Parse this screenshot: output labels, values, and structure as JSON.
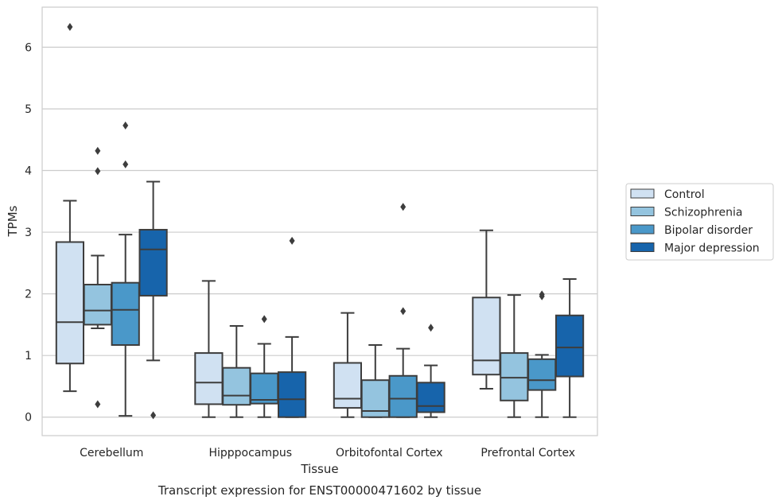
{
  "chart_data": {
    "type": "boxplot",
    "title": "Transcript expression for ENST00000471602 by tissue",
    "xlabel": "Tissue",
    "ylabel": "TPMs",
    "ylim": [
      -0.3,
      6.65
    ],
    "yticks": [
      0,
      1,
      2,
      3,
      4,
      5,
      6
    ],
    "grid": "horizontal",
    "legend_position": "right",
    "categories": [
      "Cerebellum",
      "Hipppocampus",
      "Orbitofontal Cortex",
      "Prefrontal Cortex"
    ],
    "series": [
      {
        "name": "Control",
        "color": "#d0e1f2",
        "boxes": [
          {
            "whislo": 0.42,
            "q1": 0.87,
            "med": 1.54,
            "q3": 2.84,
            "whishi": 3.51,
            "fliers": [
              6.33
            ]
          },
          {
            "whislo": 0.0,
            "q1": 0.21,
            "med": 0.56,
            "q3": 1.04,
            "whishi": 2.21,
            "fliers": []
          },
          {
            "whislo": 0.0,
            "q1": 0.15,
            "med": 0.3,
            "q3": 0.88,
            "whishi": 1.69,
            "fliers": []
          },
          {
            "whislo": 0.46,
            "q1": 0.69,
            "med": 0.92,
            "q3": 1.94,
            "whishi": 3.03,
            "fliers": []
          }
        ]
      },
      {
        "name": "Schizophrenia",
        "color": "#94c4df",
        "boxes": [
          {
            "whislo": 1.44,
            "q1": 1.5,
            "med": 1.73,
            "q3": 2.15,
            "whishi": 2.62,
            "fliers": [
              0.21,
              3.99,
              4.32
            ]
          },
          {
            "whislo": 0.0,
            "q1": 0.2,
            "med": 0.35,
            "q3": 0.8,
            "whishi": 1.48,
            "fliers": []
          },
          {
            "whislo": 0.0,
            "q1": 0.0,
            "med": 0.1,
            "q3": 0.6,
            "whishi": 1.17,
            "fliers": []
          },
          {
            "whislo": 0.0,
            "q1": 0.27,
            "med": 0.64,
            "q3": 1.04,
            "whishi": 1.98,
            "fliers": []
          }
        ]
      },
      {
        "name": "Bipolar disorder",
        "color": "#4a98c9",
        "boxes": [
          {
            "whislo": 0.02,
            "q1": 1.17,
            "med": 1.74,
            "q3": 2.18,
            "whishi": 2.96,
            "fliers": [
              4.1,
              4.73
            ]
          },
          {
            "whislo": 0.0,
            "q1": 0.22,
            "med": 0.28,
            "q3": 0.71,
            "whishi": 1.19,
            "fliers": [
              1.59
            ]
          },
          {
            "whislo": 0.0,
            "q1": 0.0,
            "med": 0.3,
            "q3": 0.67,
            "whishi": 1.11,
            "fliers": [
              1.72,
              3.41
            ]
          },
          {
            "whislo": 0.0,
            "q1": 0.44,
            "med": 0.6,
            "q3": 0.94,
            "whishi": 1.01,
            "fliers": [
              1.96,
              1.99
            ]
          }
        ]
      },
      {
        "name": "Major depression",
        "color": "#1764ab",
        "boxes": [
          {
            "whislo": 0.92,
            "q1": 1.97,
            "med": 2.72,
            "q3": 3.04,
            "whishi": 3.82,
            "fliers": [
              0.03
            ]
          },
          {
            "whislo": 0.0,
            "q1": 0.0,
            "med": 0.29,
            "q3": 0.73,
            "whishi": 1.3,
            "fliers": [
              2.86
            ]
          },
          {
            "whislo": 0.0,
            "q1": 0.08,
            "med": 0.18,
            "q3": 0.56,
            "whishi": 0.84,
            "fliers": [
              1.45
            ]
          },
          {
            "whislo": 0.0,
            "q1": 0.66,
            "med": 1.13,
            "q3": 1.65,
            "whishi": 2.24,
            "fliers": []
          }
        ]
      }
    ]
  }
}
